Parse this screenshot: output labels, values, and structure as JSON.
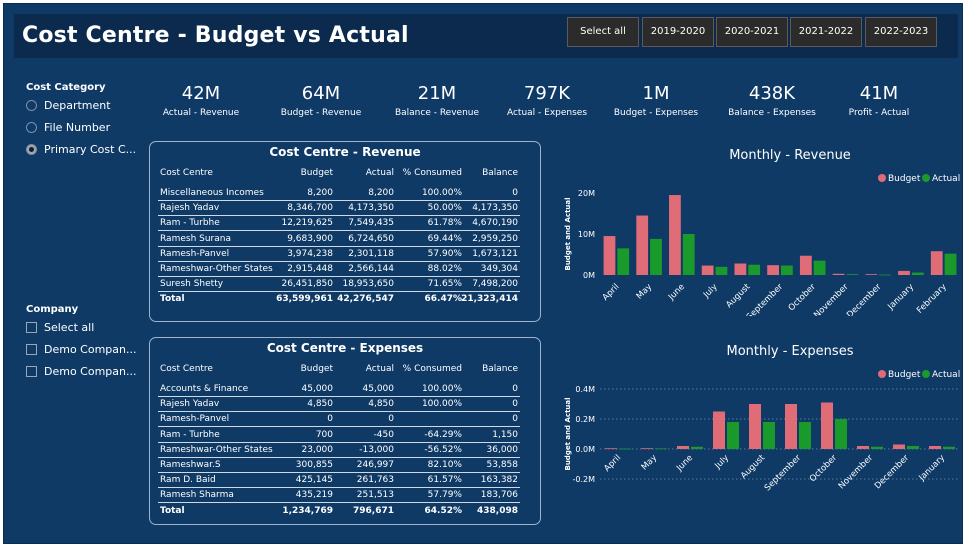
{
  "title": "Cost Centre - Budget vs Actual",
  "year_buttons": [
    "Select all",
    "2019-2020",
    "2020-2021",
    "2021-2022",
    "2022-2023"
  ],
  "cost_category": {
    "title": "Cost Category",
    "options": [
      "Department",
      "File Number",
      "Primary Cost C..."
    ],
    "selected_index": 2
  },
  "company": {
    "title": "Company",
    "options": [
      "Select all",
      "Demo Compan...",
      "Demo Compan..."
    ]
  },
  "kpis": [
    {
      "value": "42M",
      "label": "Actual - Revenue"
    },
    {
      "value": "64M",
      "label": "Budget - Revenue"
    },
    {
      "value": "21M",
      "label": "Balance - Revenue"
    },
    {
      "value": "797K",
      "label": "Actual - Expenses"
    },
    {
      "value": "1M",
      "label": "Budget - Expenses"
    },
    {
      "value": "438K",
      "label": "Balance - Expenses"
    },
    {
      "value": "41M",
      "label": "Profit - Actual"
    }
  ],
  "revenue_table": {
    "title": "Cost Centre - Revenue",
    "columns": [
      "Cost Centre",
      "Budget",
      "Actual",
      "% Consumed",
      "Balance"
    ],
    "rows": [
      [
        "Miscellaneous Incomes",
        "8,200",
        "8,200",
        "100.00%",
        "0"
      ],
      [
        "Rajesh Yadav",
        "8,346,700",
        "4,173,350",
        "50.00%",
        "4,173,350"
      ],
      [
        "Ram - Turbhe",
        "12,219,625",
        "7,549,435",
        "61.78%",
        "4,670,190"
      ],
      [
        "Ramesh Surana",
        "9,683,900",
        "6,724,650",
        "69.44%",
        "2,959,250"
      ],
      [
        "Ramesh-Panvel",
        "3,974,238",
        "2,301,118",
        "57.90%",
        "1,673,121"
      ],
      [
        "Rameshwar-Other States",
        "2,915,448",
        "2,566,144",
        "88.02%",
        "349,304"
      ],
      [
        "Suresh Shetty",
        "26,451,850",
        "18,953,650",
        "71.65%",
        "7,498,200"
      ]
    ],
    "total": [
      "Total",
      "63,599,961",
      "42,276,547",
      "66.47%",
      "21,323,414"
    ]
  },
  "expenses_table": {
    "title": "Cost Centre - Expenses",
    "columns": [
      "Cost Centre",
      "Budget",
      "Actual",
      "% Consumed",
      "Balance"
    ],
    "rows": [
      [
        "Accounts & Finance",
        "45,000",
        "45,000",
        "100.00%",
        "0"
      ],
      [
        "Rajesh Yadav",
        "4,850",
        "4,850",
        "100.00%",
        "0"
      ],
      [
        "Ramesh-Panvel",
        "0",
        "0",
        "",
        "0"
      ],
      [
        "Ram - Turbhe",
        "700",
        "-450",
        "-64.29%",
        "1,150"
      ],
      [
        "Rameshwar-Other States",
        "23,000",
        "-13,000",
        "-56.52%",
        "36,000"
      ],
      [
        "Rameshwar.S",
        "300,855",
        "246,997",
        "82.10%",
        "53,858"
      ],
      [
        "Ram D. Baid",
        "425,145",
        "261,763",
        "61.57%",
        "163,382"
      ],
      [
        "Ramesh Sharma",
        "435,219",
        "251,513",
        "57.79%",
        "183,706"
      ]
    ],
    "total": [
      "Total",
      "1,234,769",
      "796,671",
      "64.52%",
      "438,098"
    ]
  },
  "colors": {
    "budget": "#e06c78",
    "actual": "#1a9a2a"
  },
  "chart_data": [
    {
      "type": "bar",
      "title": "Monthly - Revenue",
      "ylabel": "Budget and Actual",
      "categories": [
        "April",
        "May",
        "June",
        "July",
        "August",
        "September",
        "October",
        "November",
        "December",
        "January",
        "February"
      ],
      "series": [
        {
          "name": "Budget",
          "values": [
            9.5,
            14.5,
            19.5,
            2.3,
            2.8,
            2.4,
            4.7,
            0.3,
            0.2,
            1.0,
            5.8
          ]
        },
        {
          "name": "Actual",
          "values": [
            6.5,
            8.8,
            10.0,
            2.0,
            2.5,
            2.3,
            3.5,
            0.2,
            0.1,
            0.6,
            5.2
          ]
        }
      ],
      "unit": "M",
      "ylim": [
        0,
        20
      ],
      "yticks": [
        "20M",
        "10M",
        "0M"
      ],
      "legend": "top-right",
      "grid": false
    },
    {
      "type": "bar",
      "title": "Monthly - Expenses",
      "ylabel": "Budget and Actual",
      "categories": [
        "April",
        "May",
        "June",
        "July",
        "August",
        "September",
        "October",
        "November",
        "December",
        "January"
      ],
      "series": [
        {
          "name": "Budget",
          "values": [
            0.005,
            0.005,
            0.02,
            0.25,
            0.3,
            0.3,
            0.31,
            0.02,
            0.03,
            0.02
          ]
        },
        {
          "name": "Actual",
          "values": [
            0.003,
            0.004,
            0.015,
            0.18,
            0.18,
            0.18,
            0.2,
            0.015,
            0.02,
            0.015
          ]
        }
      ],
      "unit": "M",
      "ylim": [
        -0.2,
        0.4
      ],
      "yticks": [
        "0.4M",
        "0.2M",
        "0.0M",
        "-0.2M"
      ],
      "legend": "top-right",
      "grid": true
    }
  ]
}
